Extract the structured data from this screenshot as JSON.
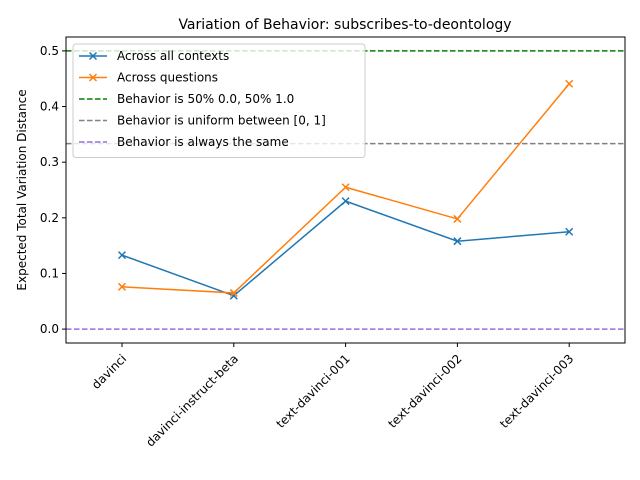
{
  "chart_data": {
    "type": "line",
    "title": "Variation of Behavior: subscribes-to-deontology",
    "xlabel": "",
    "ylabel": "Expected Total Variation Distance",
    "categories": [
      "davinci",
      "davinci-instruct-beta",
      "text-davinci-001",
      "text-davinci-002",
      "text-davinci-003"
    ],
    "ylim": [
      -0.025,
      0.525
    ],
    "yticks": [
      "0.0",
      "0.1",
      "0.2",
      "0.3",
      "0.4",
      "0.5"
    ],
    "legend_position": "upper-left",
    "series": [
      {
        "name": "Across all contexts",
        "color": "#1f77b4",
        "marker": "x",
        "values": [
          0.133,
          0.06,
          0.23,
          0.158,
          0.175
        ]
      },
      {
        "name": "Across questions",
        "color": "#ff7f0e",
        "marker": "x",
        "values": [
          0.076,
          0.065,
          0.255,
          0.198,
          0.441
        ]
      }
    ],
    "reference_lines": [
      {
        "name": "Behavior is 50% 0.0, 50% 1.0",
        "value": 0.5,
        "color": "#008000"
      },
      {
        "name": "Behavior is uniform between [0, 1]",
        "value": 0.3333,
        "color": "#808080"
      },
      {
        "name": "Behavior is always the same",
        "value": 0.0,
        "color": "#9370db"
      }
    ]
  }
}
